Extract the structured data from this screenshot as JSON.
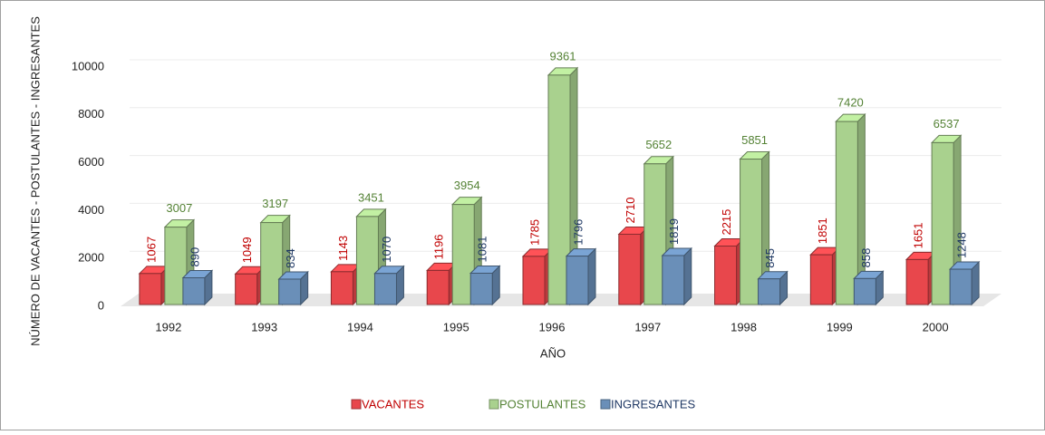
{
  "chart_data": {
    "type": "bar3d",
    "categories": [
      "1992",
      "1993",
      "1994",
      "1995",
      "1996",
      "1997",
      "1998",
      "1999",
      "2000"
    ],
    "series": [
      {
        "name": "VACANTES",
        "color": "#e8474c",
        "label_color": "#c00000",
        "values": [
          1067,
          1049,
          1143,
          1196,
          1785,
          2710,
          2215,
          1851,
          1651
        ]
      },
      {
        "name": "POSTULANTES",
        "color": "#a9d18e",
        "label_color": "#548235",
        "values": [
          3007,
          3197,
          3451,
          3954,
          9361,
          5652,
          5851,
          7420,
          6537
        ]
      },
      {
        "name": "INGRESANTES",
        "color": "#6a8fb8",
        "label_color": "#1f3864",
        "values": [
          890,
          834,
          1070,
          1081,
          1796,
          1819,
          845,
          858,
          1248
        ]
      }
    ],
    "ylim": [
      0,
      10000
    ],
    "yticks": [
      0,
      2000,
      4000,
      6000,
      8000,
      10000
    ],
    "grid": true,
    "xlabel": "AÑO",
    "ylabel": "NÚMERO DE VACANTES - POSTULANTES - INGRESANTES",
    "legend": "bottom"
  }
}
